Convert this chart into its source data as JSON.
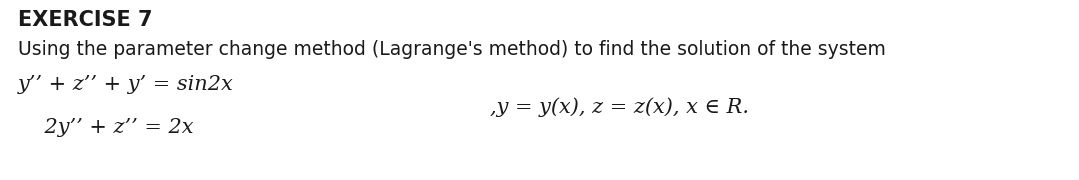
{
  "title": "EXERCISE 7",
  "line2": "Using the parameter change method (Lagrange's method) to find the solution of the system",
  "eq1_left": "y’’ + z’’ + y’ = sin2x",
  "eq2_left": "    2y’’ + z’’ = 2x",
  "side_text": ",y = y(x), z = z(x), x ∈ R.",
  "bg_color": "#ffffff",
  "text_color": "#1a1a1a",
  "title_fontsize": 15,
  "body_fontsize": 13.5,
  "eq_fontsize": 15
}
